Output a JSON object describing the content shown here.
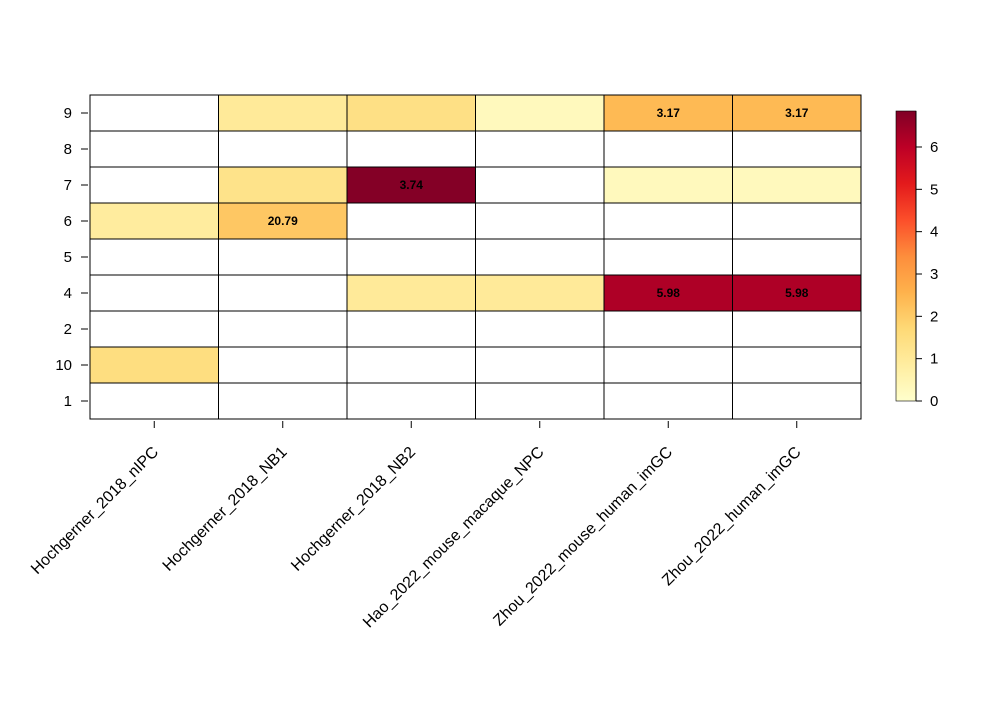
{
  "chart_data": {
    "type": "heatmap",
    "title": "",
    "xlabel": "",
    "ylabel": "",
    "rows": [
      "9",
      "8",
      "7",
      "6",
      "5",
      "4",
      "2",
      "10",
      "1"
    ],
    "columns": [
      "Hochgerner_2018_nIPC",
      "Hochgerner_2018_NB1",
      "Hochgerner_2018_NB2",
      "Hao_2022_mouse_macaque_NPC",
      "Zhou_2022_mouse_human_imGC",
      "Zhou_2022_human_imGC"
    ],
    "values": [
      [
        0,
        1.0,
        1.4,
        0.3,
        2.4,
        2.4
      ],
      [
        0,
        0,
        0,
        0,
        0,
        0
      ],
      [
        0,
        1.3,
        6.8,
        0,
        0.3,
        0.3
      ],
      [
        0.9,
        2.1,
        0,
        0,
        0,
        0
      ],
      [
        0,
        0,
        0,
        0,
        0,
        0
      ],
      [
        0,
        0,
        1.0,
        1.0,
        6.2,
        6.2
      ],
      [
        0,
        0,
        0,
        0,
        0,
        0
      ],
      [
        1.5,
        0,
        0,
        0,
        0,
        0
      ],
      [
        0,
        0,
        0,
        0,
        0,
        0
      ]
    ],
    "cell_labels": [
      [
        "",
        "",
        "",
        "",
        "3.17",
        "3.17"
      ],
      [
        "",
        "",
        "",
        "",
        "",
        ""
      ],
      [
        "",
        "",
        "3.74",
        "",
        "",
        ""
      ],
      [
        "",
        "20.79",
        "",
        "",
        "",
        ""
      ],
      [
        "",
        "",
        "",
        "",
        "",
        ""
      ],
      [
        "",
        "",
        "",
        "",
        "5.98",
        "5.98"
      ],
      [
        "",
        "",
        "",
        "",
        "",
        ""
      ],
      [
        "",
        "",
        "",
        "",
        "",
        ""
      ],
      [
        "",
        "",
        "",
        "",
        "",
        ""
      ]
    ],
    "color_scale": {
      "min": 0,
      "max": 6.85,
      "ticks": [
        "0",
        "1",
        "2",
        "3",
        "4",
        "5",
        "6"
      ],
      "colors": [
        "#FFFFCC",
        "#FFEDA0",
        "#FED976",
        "#FEB24C",
        "#FD8D3C",
        "#FC4E2A",
        "#E31A1C",
        "#BD0026",
        "#800026"
      ]
    },
    "legend_position": "right",
    "grid": true
  }
}
